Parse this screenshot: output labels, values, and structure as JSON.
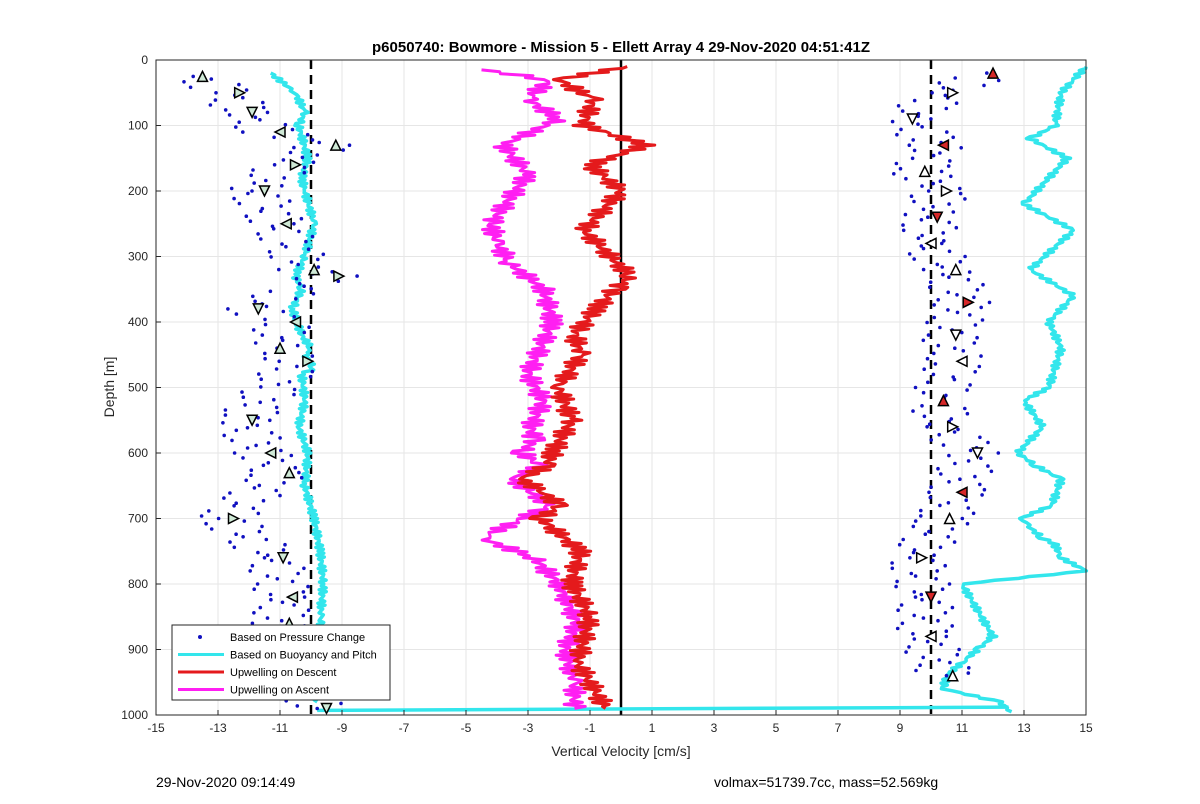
{
  "footer": {
    "left": "29-Nov-2020 09:14:49",
    "right": "volmax=51739.7cc, mass=52.569kg"
  },
  "chart_data": {
    "type": "line",
    "title": "p6050740: Bowmore - Mission 5 - Ellett Array 4 29-Nov-2020 04:51:41Z",
    "xlabel": "Vertical Velocity [cm/s]",
    "ylabel": "Depth [m]",
    "xlim": [
      -15,
      15
    ],
    "ylim": [
      0,
      1000
    ],
    "y_reversed": true,
    "grid": true,
    "legend_position": "bottom-left",
    "xticks": [
      "-15",
      "-13",
      "-11",
      "-9",
      "-7",
      "-5",
      "-3",
      "-1",
      "1",
      "3",
      "5",
      "7",
      "9",
      "11",
      "13",
      "15"
    ],
    "yticks": [
      "0",
      "100",
      "200",
      "300",
      "400",
      "500",
      "600",
      "700",
      "800",
      "900",
      "1000"
    ],
    "reference_lines": [
      {
        "x": -10,
        "style": "dashed",
        "color": "#000000"
      },
      {
        "x": 10,
        "style": "dashed",
        "color": "#000000"
      },
      {
        "x": 0,
        "style": "solid",
        "color": "#000000"
      }
    ],
    "series": [
      {
        "name": "Based on Buoyancy and Pitch",
        "color": "#33e6ec",
        "style": "line",
        "segments": [
          {
            "x": [
              -11.3,
              -10.5,
              -10.2,
              -10.4,
              -10.1,
              -10.3,
              -10.2,
              -9.9,
              -10.2,
              -10.5,
              -10.3,
              -10.6,
              -10.3,
              -10.0,
              -10.2,
              -9.9,
              -10.3,
              -10.2,
              -10.4,
              -10.1,
              -10.2,
              -9.9,
              -9.7,
              -9.6,
              -9.7,
              -9.6,
              -9.8
            ],
            "y": [
              20,
              50,
              80,
              100,
              150,
              180,
              200,
              250,
              300,
              330,
              350,
              380,
              420,
              440,
              450,
              470,
              480,
              520,
              560,
              600,
              650,
              700,
              750,
              800,
              850,
              900,
              980
            ]
          },
          {
            "x": [
              15.0,
              14.2,
              14.0,
              13.2,
              14.4,
              13.0,
              14.6,
              13.2,
              14.6,
              13.8,
              14.2,
              13.8,
              13.0,
              13.6,
              12.8,
              13.4,
              14.2,
              13.9,
              12.9,
              13.1,
              13.6,
              14.0,
              14.2,
              15.0,
              11.0,
              11.5,
              12.0,
              11.5,
              11.0,
              10.5,
              10.4,
              12.2,
              12.6
            ],
            "y": [
              10,
              50,
              100,
              120,
              150,
              220,
              260,
              320,
              360,
              400,
              440,
              500,
              520,
              560,
              600,
              620,
              640,
              680,
              700,
              710,
              730,
              740,
              760,
              780,
              800,
              840,
              880,
              900,
              920,
              940,
              960,
              980,
              995
            ]
          },
          {
            "x": [
              -9.8,
              12.5
            ],
            "y": [
              993,
              988
            ]
          }
        ]
      },
      {
        "name": "Upwelling on Descent",
        "color": "#e41a1c",
        "style": "line",
        "segments": [
          {
            "x": [
              0.2,
              -2.0,
              -0.9,
              -1.2,
              0.8,
              -1.0,
              0.0,
              -1.2,
              0.3,
              -0.2,
              -0.8,
              -1.5,
              -1.3,
              -2.0,
              -1.6,
              -2.2,
              -2.4,
              -3.2,
              -2.5,
              -2.0,
              -2.6,
              -1.3,
              -1.6,
              -1.0,
              -1.4,
              -0.5
            ],
            "y": [
              10,
              30,
              60,
              100,
              130,
              160,
              200,
              260,
              330,
              350,
              380,
              420,
              450,
              500,
              550,
              600,
              620,
              640,
              660,
              680,
              700,
              750,
              800,
              850,
              920,
              990
            ]
          }
        ]
      },
      {
        "name": "Upwelling on Ascent",
        "color": "#ff1ff2",
        "style": "line",
        "segments": [
          {
            "x": [
              -4.5,
              -2.3,
              -3.0,
              -2.0,
              -3.8,
              -3.0,
              -4.2,
              -4.0,
              -3.6,
              -2.5,
              -2.2,
              -3.0,
              -2.5,
              -2.9,
              -2.8,
              -3.2,
              -2.6,
              -3.5,
              -2.3,
              -4.5,
              -2.8,
              -2.0,
              -1.4,
              -1.8,
              -1.5,
              -1.5
            ],
            "y": [
              15,
              30,
              60,
              90,
              130,
              175,
              250,
              280,
              310,
              350,
              400,
              480,
              520,
              560,
              580,
              600,
              620,
              640,
              680,
              730,
              760,
              800,
              860,
              900,
              950,
              990
            ]
          }
        ]
      },
      {
        "name": "Based on Pressure Change",
        "color": "#1010c0",
        "style": "dots",
        "segments": [
          {
            "x": [
              -13.8,
              -12.6,
              -12.2,
              -11.3,
              -9.5,
              -10.8,
              -11.8,
              -11.1,
              -10.2,
              -9.4,
              -12.0,
              -10.8,
              -11.3,
              -10.4,
              -12.2,
              -11.6,
              -11.0,
              -12.8,
              -11.2,
              -10.9,
              -11.0,
              -10.4,
              -9.8
            ],
            "y": [
              25,
              50,
              80,
              110,
              130,
              160,
              200,
              250,
              320,
              330,
              380,
              400,
              440,
              460,
              550,
              600,
              630,
              700,
              760,
              820,
              860,
              920,
              990
            ]
          },
          {
            "x": [
              11.8,
              10.5,
              9.2,
              10.2,
              9.6,
              10.3,
              10.0,
              9.8,
              10.6,
              11.0,
              10.6,
              10.8,
              10.2,
              10.5,
              11.3,
              10.8,
              10.4,
              9.5,
              9.8,
              9.8,
              10.5
            ],
            "y": [
              20,
              50,
              90,
              130,
              170,
              200,
              240,
              280,
              320,
              370,
              420,
              460,
              520,
              560,
              600,
              660,
              700,
              760,
              820,
              880,
              940
            ]
          }
        ]
      }
    ]
  }
}
